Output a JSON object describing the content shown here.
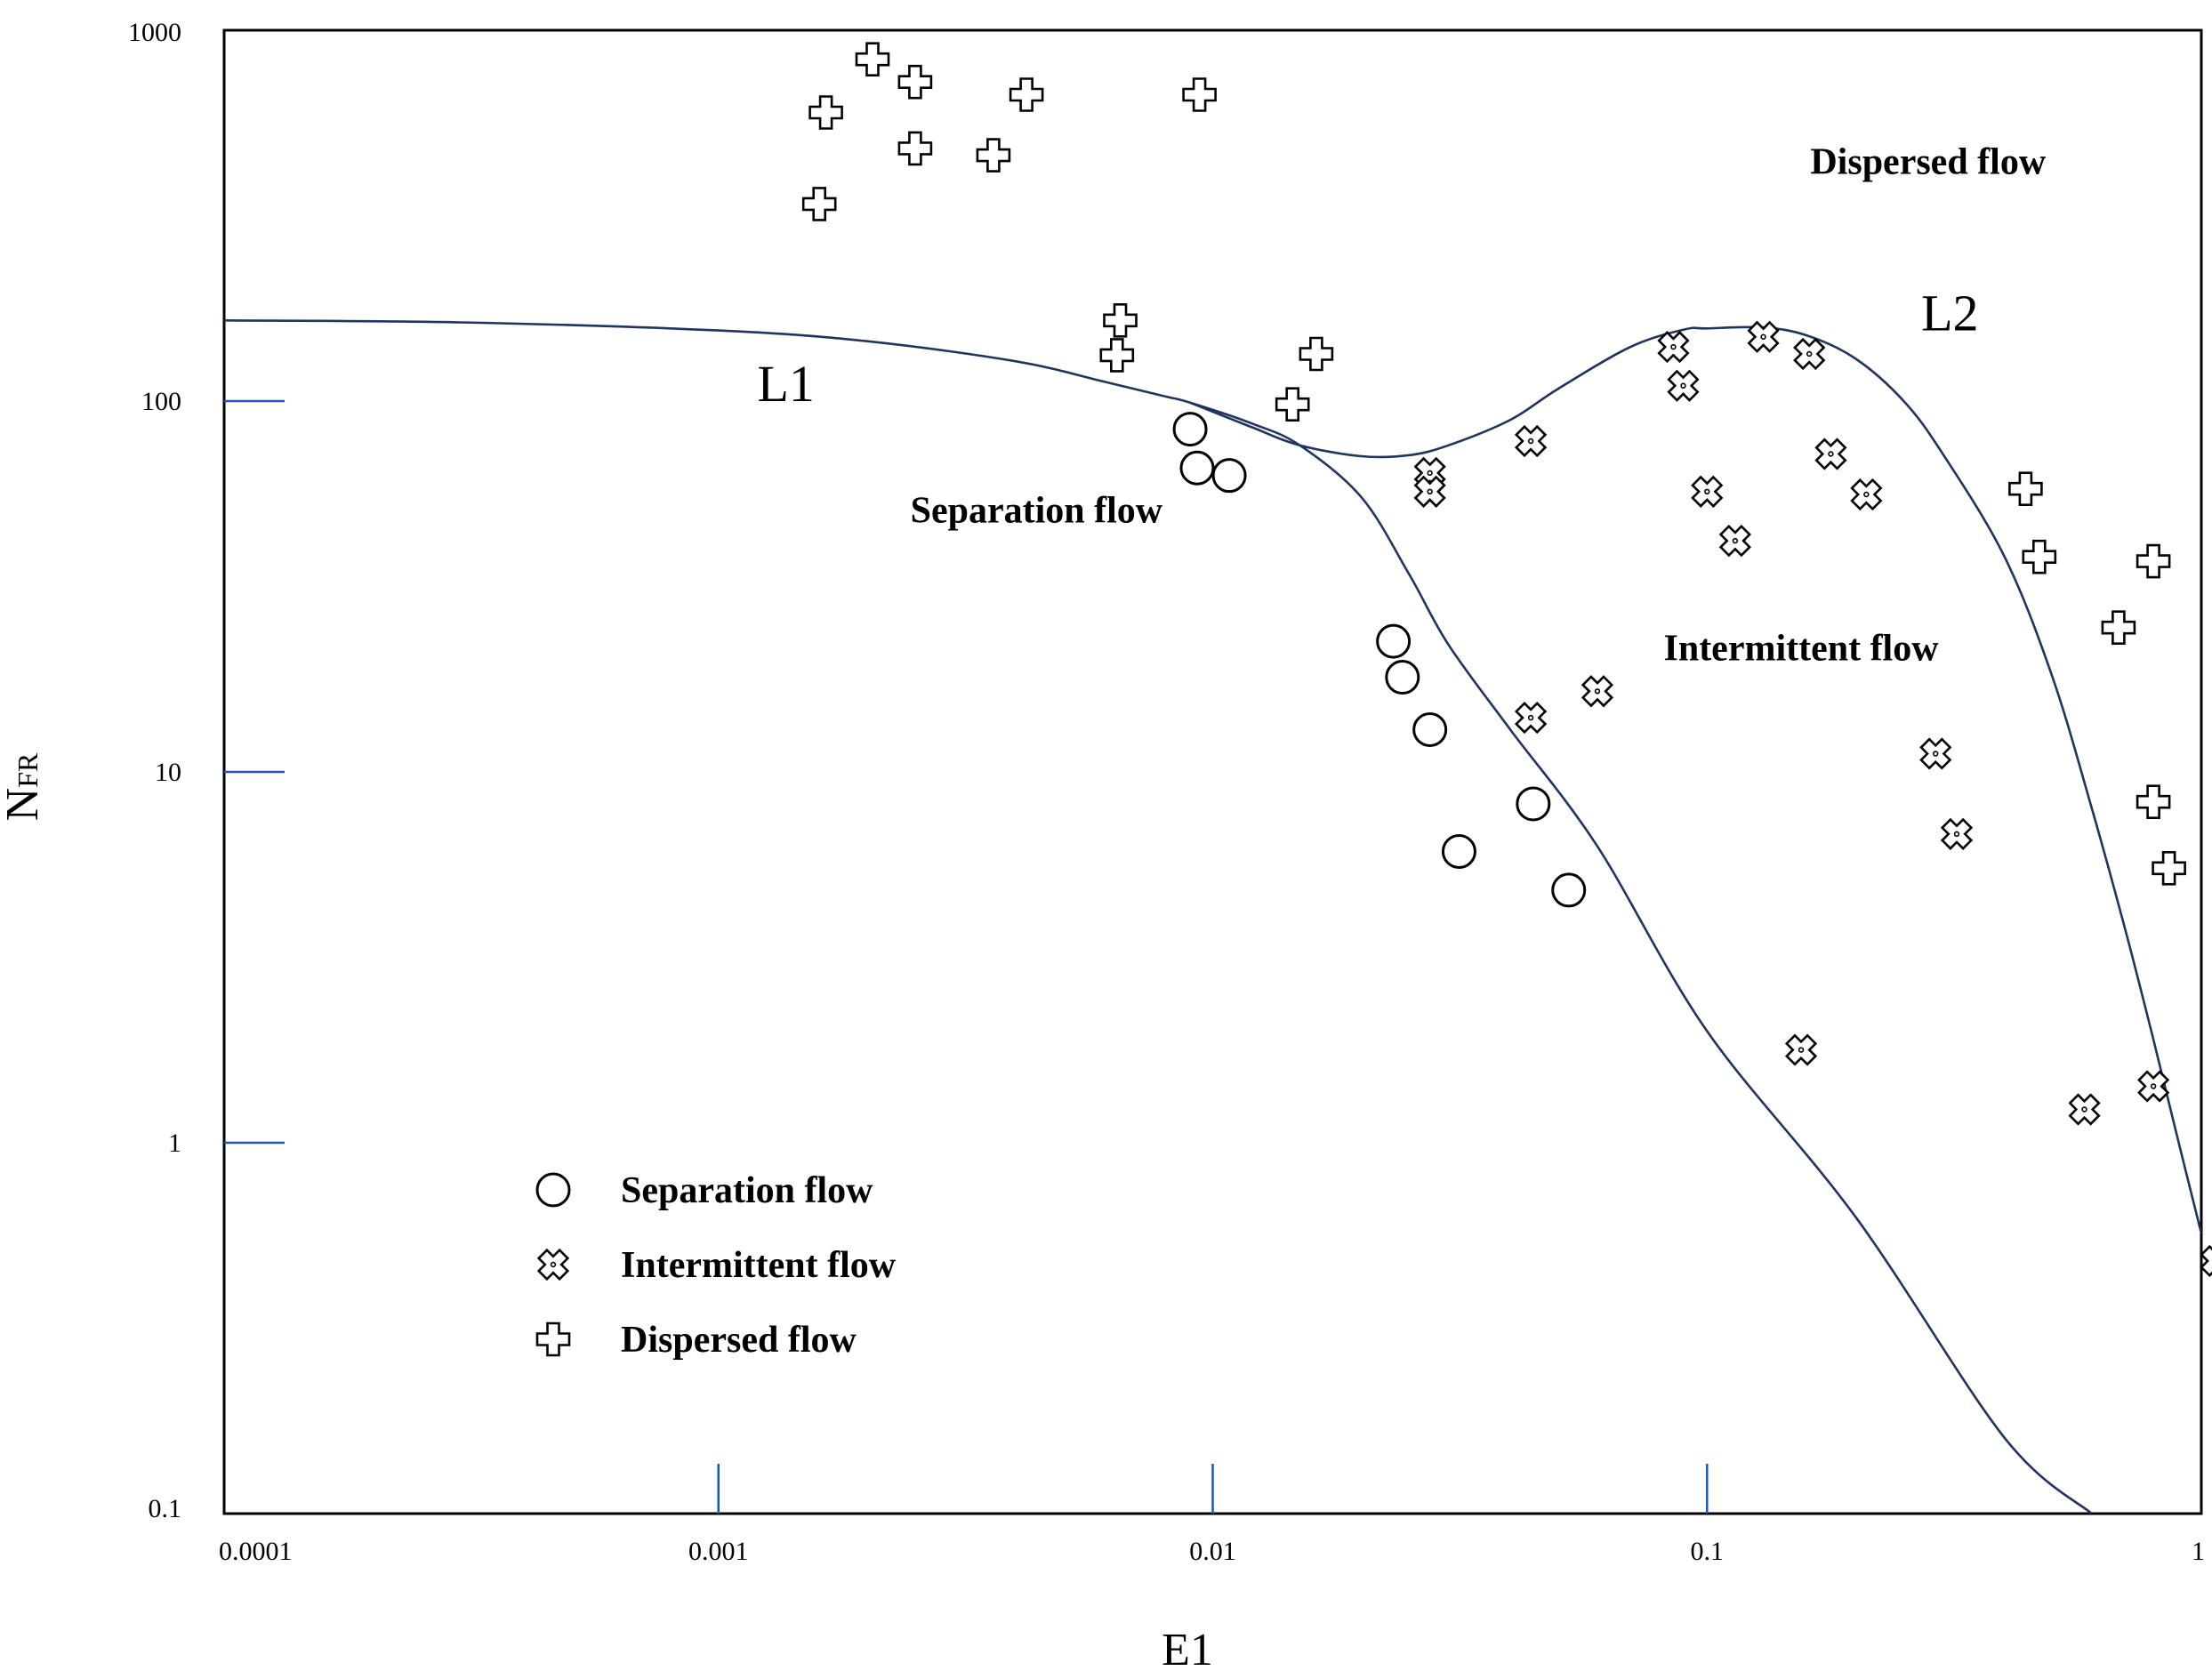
{
  "chart_data": {
    "type": "scatter",
    "xscale": "log",
    "yscale": "log",
    "xlim": [
      0.0001,
      1
    ],
    "ylim": [
      0.1,
      1000
    ],
    "xlabel": "E1",
    "ylabel": "N",
    "ylabel_sub": "FR",
    "x_ticks": [
      {
        "value": 0.0001,
        "label": "0.0001"
      },
      {
        "value": 0.001,
        "label": "0.001"
      },
      {
        "value": 0.01,
        "label": "0.01"
      },
      {
        "value": 0.1,
        "label": "0.1"
      },
      {
        "value": 1,
        "label": "1"
      }
    ],
    "y_ticks": [
      {
        "value": 0.1,
        "label": "0.1"
      },
      {
        "value": 1,
        "label": "1"
      },
      {
        "value": 10,
        "label": "10"
      },
      {
        "value": 100,
        "label": "100"
      },
      {
        "value": 1000,
        "label": "1000"
      }
    ],
    "series": [
      {
        "name": "Separation flow",
        "marker": "circle",
        "points": [
          [
            0.009,
            84
          ],
          [
            0.0093,
            66
          ],
          [
            0.0108,
            63
          ],
          [
            0.0232,
            22.5
          ],
          [
            0.0242,
            18
          ],
          [
            0.0275,
            13
          ],
          [
            0.0315,
            6.1
          ],
          [
            0.0445,
            8.2
          ],
          [
            0.0525,
            4.8
          ]
        ]
      },
      {
        "name": "Intermittent flow",
        "marker": "x",
        "points": [
          [
            0.0275,
            64
          ],
          [
            0.0275,
            57
          ],
          [
            0.044,
            78
          ],
          [
            0.0855,
            140
          ],
          [
            0.0895,
            110
          ],
          [
            0.1,
            57
          ],
          [
            0.114,
            42
          ],
          [
            0.13,
            149
          ],
          [
            0.161,
            134
          ],
          [
            0.178,
            72
          ],
          [
            0.21,
            56
          ],
          [
            0.06,
            16.5
          ],
          [
            0.044,
            14
          ],
          [
            0.29,
            11.2
          ],
          [
            0.32,
            6.8
          ],
          [
            0.155,
            1.78
          ],
          [
            0.58,
            1.23
          ],
          [
            0.8,
            1.42
          ],
          [
            1.07,
            0.48
          ]
        ]
      },
      {
        "name": "Dispersed flow",
        "marker": "plus",
        "points": [
          [
            0.00165,
            600
          ],
          [
            0.00205,
            835
          ],
          [
            0.0025,
            725
          ],
          [
            0.0025,
            480
          ],
          [
            0.0042,
            670
          ],
          [
            0.0036,
            460
          ],
          [
            0.0094,
            670
          ],
          [
            0.0016,
            340
          ],
          [
            0.0065,
            165
          ],
          [
            0.0064,
            133
          ],
          [
            0.0162,
            134
          ],
          [
            0.0145,
            98
          ],
          [
            0.441,
            58
          ],
          [
            0.47,
            38
          ],
          [
            0.8,
            37
          ],
          [
            0.68,
            24.5
          ],
          [
            0.8,
            8.3
          ],
          [
            0.86,
            5.5
          ]
        ]
      }
    ],
    "curves": [
      {
        "name": "L1",
        "points": [
          [
            0.0001,
            165
          ],
          [
            0.0003,
            163
          ],
          [
            0.001,
            155
          ],
          [
            0.002,
            145
          ],
          [
            0.004,
            128
          ],
          [
            0.006,
            113
          ],
          [
            0.008,
            103
          ],
          [
            0.009,
            99
          ],
          [
            0.012,
            87
          ],
          [
            0.015,
            76
          ],
          [
            0.02,
            55
          ],
          [
            0.025,
            34
          ],
          [
            0.03,
            22
          ],
          [
            0.04,
            13
          ],
          [
            0.06,
            6.3
          ],
          [
            0.1,
            2.0
          ],
          [
            0.2,
            0.63
          ],
          [
            0.4,
            0.16
          ],
          [
            0.6,
            0.1
          ]
        ]
      },
      {
        "name": "L2",
        "points": [
          [
            0.009,
            99
          ],
          [
            0.012,
            85
          ],
          [
            0.015,
            76
          ],
          [
            0.02,
            71
          ],
          [
            0.025,
            71.5
          ],
          [
            0.03,
            76
          ],
          [
            0.04,
            89
          ],
          [
            0.05,
            108
          ],
          [
            0.07,
            140
          ],
          [
            0.09,
            156
          ],
          [
            0.1,
            157
          ],
          [
            0.13,
            158
          ],
          [
            0.16,
            150
          ],
          [
            0.2,
            130
          ],
          [
            0.25,
            100
          ],
          [
            0.3,
            72
          ],
          [
            0.4,
            38
          ],
          [
            0.5,
            18
          ],
          [
            0.6,
            8
          ],
          [
            0.7,
            3.8
          ],
          [
            0.8,
            1.9
          ],
          [
            0.9,
            1.0
          ],
          [
            1.0,
            0.57
          ]
        ]
      }
    ],
    "curve_labels": [
      {
        "text": "L1",
        "x": 0.00137,
        "y": 100
      },
      {
        "text": "L2",
        "x": 0.31,
        "y": 155
      }
    ],
    "region_labels": [
      {
        "text": "Dispersed flow",
        "x": 0.28,
        "y": 410
      },
      {
        "text": "Separation flow",
        "x": 0.0044,
        "y": 47
      },
      {
        "text": "Intermittent flow",
        "x": 0.155,
        "y": 20
      }
    ],
    "legend": {
      "position": "bottom-left",
      "entries": [
        {
          "label": "Separation flow",
          "marker": "circle"
        },
        {
          "label": "Intermittent flow",
          "marker": "x"
        },
        {
          "label": "Dispersed flow",
          "marker": "plus"
        }
      ]
    },
    "colors": {
      "curve": "#1f3461",
      "tick": "#2255bb",
      "marker": "#000000"
    }
  }
}
